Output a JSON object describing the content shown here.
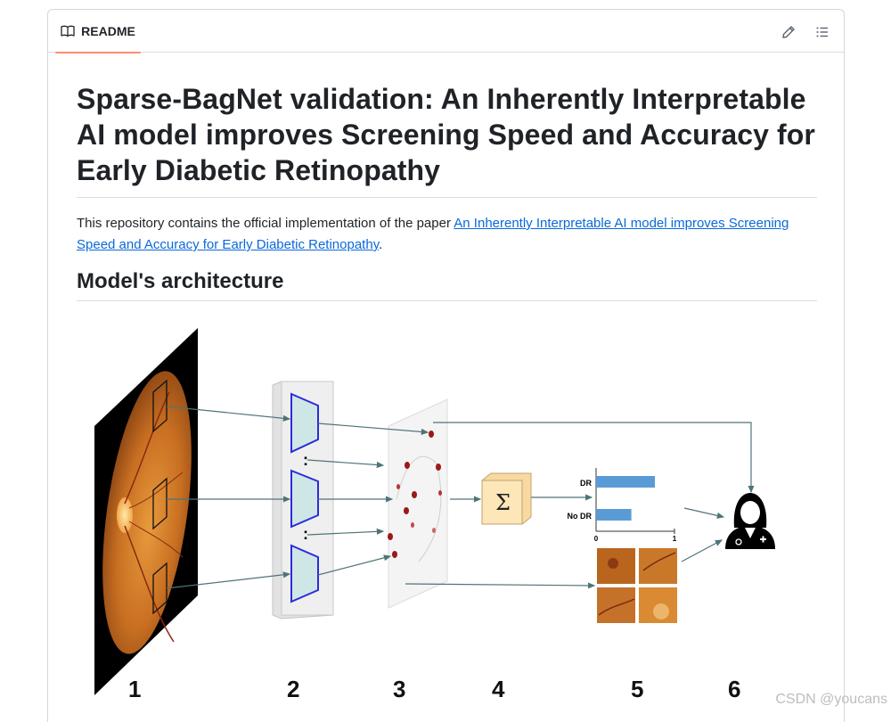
{
  "header": {
    "tab_label": "README",
    "edit_label": "Edit file",
    "outline_label": "Outline"
  },
  "title": "Sparse-BagNet validation: An Inherently Interpretable AI model improves Screening Speed and Accuracy for Early Diabetic Retinopathy",
  "intro": {
    "before_link": "This repository contains the official implementation of the paper ",
    "link_text": "An Inherently Interpretable AI model improves Screening Speed and Accuracy for Early Diabetic Retinopathy",
    "after_link": "."
  },
  "section_heading": "Model's architecture",
  "figure": {
    "steps": [
      "1",
      "2",
      "3",
      "4",
      "5",
      "6"
    ],
    "sum_symbol": "Σ",
    "colon_symbol": ":",
    "bar_labels": [
      "DR",
      "No DR"
    ],
    "bar_values": [
      0.75,
      0.45
    ],
    "axis_ticks": [
      "0",
      "1"
    ],
    "bar_color": "#5b9bd5"
  },
  "watermark": "CSDN @youcans"
}
